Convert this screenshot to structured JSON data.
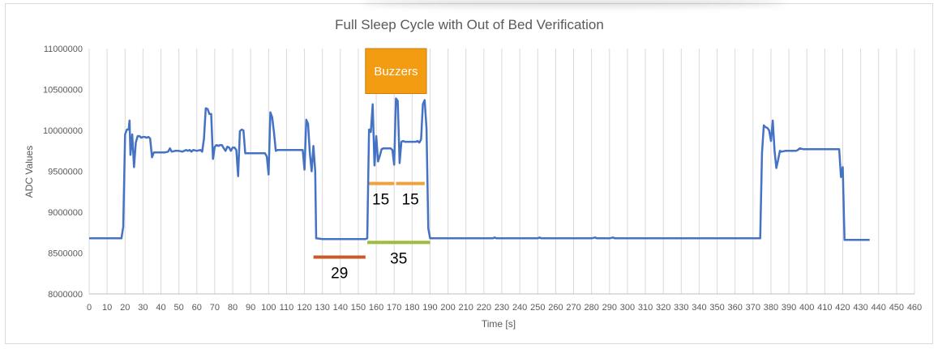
{
  "chart_data": {
    "type": "line",
    "title": "Full Sleep Cycle with Out of Bed Verification",
    "xlabel": "Time [s]",
    "ylabel": "ADC Values",
    "xlim": [
      0,
      460
    ],
    "ylim": [
      8000000,
      11000000
    ],
    "x_ticks": [
      0,
      10,
      20,
      30,
      40,
      50,
      60,
      70,
      80,
      90,
      100,
      110,
      120,
      130,
      140,
      150,
      160,
      170,
      180,
      190,
      200,
      210,
      220,
      230,
      240,
      250,
      260,
      270,
      280,
      290,
      300,
      310,
      320,
      330,
      340,
      350,
      360,
      370,
      380,
      390,
      400,
      410,
      420,
      430,
      440,
      450,
      460
    ],
    "y_ticks": [
      8000000,
      8500000,
      9000000,
      9500000,
      10000000,
      10500000,
      11000000
    ],
    "grid": "vertical",
    "legend": "none",
    "series_color": "#4472c4",
    "series": [
      {
        "points": [
          [
            0,
            8680000
          ],
          [
            18,
            8680000
          ],
          [
            19,
            8820000
          ],
          [
            20,
            9950000
          ],
          [
            21,
            10010000
          ],
          [
            22,
            10010000
          ],
          [
            22.5,
            10120000
          ],
          [
            23,
            9700000
          ],
          [
            24,
            9950000
          ],
          [
            25,
            9550000
          ],
          [
            26,
            9850000
          ],
          [
            27,
            9930000
          ],
          [
            28,
            9930000
          ],
          [
            29,
            9910000
          ],
          [
            30,
            9920000
          ],
          [
            31,
            9920000
          ],
          [
            32,
            9910000
          ],
          [
            33,
            9920000
          ],
          [
            34,
            9900000
          ],
          [
            35,
            9670000
          ],
          [
            36,
            9730000
          ],
          [
            37,
            9730000
          ],
          [
            38,
            9730000
          ],
          [
            40,
            9730000
          ],
          [
            42,
            9730000
          ],
          [
            44,
            9740000
          ],
          [
            45,
            9780000
          ],
          [
            46,
            9740000
          ],
          [
            48,
            9750000
          ],
          [
            50,
            9750000
          ],
          [
            52,
            9740000
          ],
          [
            54,
            9760000
          ],
          [
            55,
            9750000
          ],
          [
            56,
            9760000
          ],
          [
            57,
            9740000
          ],
          [
            58,
            9760000
          ],
          [
            60,
            9750000
          ],
          [
            62,
            9760000
          ],
          [
            63,
            9740000
          ],
          [
            64,
            9900000
          ],
          [
            65,
            10270000
          ],
          [
            66,
            10260000
          ],
          [
            67,
            10200000
          ],
          [
            68,
            10200000
          ],
          [
            69,
            9650000
          ],
          [
            70,
            9800000
          ],
          [
            71,
            9820000
          ],
          [
            72,
            9810000
          ],
          [
            73,
            9820000
          ],
          [
            74,
            9820000
          ],
          [
            75,
            9780000
          ],
          [
            76,
            9750000
          ],
          [
            77,
            9800000
          ],
          [
            78,
            9790000
          ],
          [
            79,
            9750000
          ],
          [
            80,
            9790000
          ],
          [
            81,
            9790000
          ],
          [
            82,
            9760000
          ],
          [
            83,
            9440000
          ],
          [
            84,
            9990000
          ],
          [
            85,
            10010000
          ],
          [
            86,
            10000000
          ],
          [
            87,
            9720000
          ],
          [
            88,
            9720000
          ],
          [
            90,
            9720000
          ],
          [
            92,
            9720000
          ],
          [
            94,
            9720000
          ],
          [
            96,
            9720000
          ],
          [
            98,
            9720000
          ],
          [
            99,
            9680000
          ],
          [
            100,
            9460000
          ],
          [
            101,
            10220000
          ],
          [
            102,
            10160000
          ],
          [
            103,
            9980000
          ],
          [
            104,
            9750000
          ],
          [
            105,
            9760000
          ],
          [
            110,
            9760000
          ],
          [
            115,
            9760000
          ],
          [
            118,
            9760000
          ],
          [
            119,
            9760000
          ],
          [
            120,
            9520000
          ],
          [
            121,
            10130000
          ],
          [
            122,
            10080000
          ],
          [
            123,
            9720000
          ],
          [
            124,
            9500000
          ],
          [
            125,
            9810000
          ],
          [
            126,
            9500000
          ],
          [
            126.5,
            8680000
          ],
          [
            130,
            8670000
          ],
          [
            140,
            8670000
          ],
          [
            150,
            8670000
          ],
          [
            154,
            8670000
          ],
          [
            155,
            8680000
          ],
          [
            156,
            10010000
          ],
          [
            157,
            9980000
          ],
          [
            158,
            10320000
          ],
          [
            159,
            9570000
          ],
          [
            160,
            9930000
          ],
          [
            161,
            9620000
          ],
          [
            162,
            9690000
          ],
          [
            163,
            9770000
          ],
          [
            164,
            9780000
          ],
          [
            166,
            9780000
          ],
          [
            168,
            9780000
          ],
          [
            169,
            9760000
          ],
          [
            170,
            9580000
          ],
          [
            171,
            10390000
          ],
          [
            172,
            10360000
          ],
          [
            173,
            9600000
          ],
          [
            174,
            9860000
          ],
          [
            175,
            9870000
          ],
          [
            176,
            9860000
          ],
          [
            178,
            9860000
          ],
          [
            180,
            9860000
          ],
          [
            182,
            9860000
          ],
          [
            183,
            9870000
          ],
          [
            184,
            9850000
          ],
          [
            185,
            9890000
          ],
          [
            186,
            10320000
          ],
          [
            187,
            10370000
          ],
          [
            188,
            10020000
          ],
          [
            189,
            8800000
          ],
          [
            190,
            8680000
          ],
          [
            200,
            8680000
          ],
          [
            220,
            8680000
          ],
          [
            225,
            8680000
          ],
          [
            226,
            8690000
          ],
          [
            227,
            8680000
          ],
          [
            230,
            8680000
          ],
          [
            250,
            8680000
          ],
          [
            251,
            8690000
          ],
          [
            252,
            8680000
          ],
          [
            280,
            8680000
          ],
          [
            282,
            8690000
          ],
          [
            283,
            8680000
          ],
          [
            290,
            8680000
          ],
          [
            292,
            8690000
          ],
          [
            293,
            8680000
          ],
          [
            310,
            8680000
          ],
          [
            340,
            8680000
          ],
          [
            370,
            8680000
          ],
          [
            374,
            8680000
          ],
          [
            375,
            9720000
          ],
          [
            376,
            10060000
          ],
          [
            377,
            10040000
          ],
          [
            378,
            10030000
          ],
          [
            379,
            10000000
          ],
          [
            380,
            9870000
          ],
          [
            381,
            10120000
          ],
          [
            382,
            9750000
          ],
          [
            383,
            9540000
          ],
          [
            384,
            9640000
          ],
          [
            385,
            9750000
          ],
          [
            386,
            9740000
          ],
          [
            388,
            9750000
          ],
          [
            390,
            9750000
          ],
          [
            392,
            9750000
          ],
          [
            394,
            9750000
          ],
          [
            395,
            9760000
          ],
          [
            396,
            9780000
          ],
          [
            398,
            9770000
          ],
          [
            400,
            9770000
          ],
          [
            405,
            9770000
          ],
          [
            410,
            9770000
          ],
          [
            415,
            9770000
          ],
          [
            418,
            9770000
          ],
          [
            419,
            9430000
          ],
          [
            420,
            9550000
          ],
          [
            421,
            8660000
          ],
          [
            425,
            8660000
          ],
          [
            430,
            8660000
          ],
          [
            435,
            8660000
          ]
        ]
      }
    ],
    "annotations": {
      "buzzer_box": {
        "label": "Buzzers",
        "color": "#f39c11",
        "x_range": [
          154,
          188
        ],
        "y_range": [
          10450000,
          11000000
        ]
      },
      "intervals": [
        {
          "label": "15",
          "color": "#f1a13a",
          "x_range": [
            155,
            170
          ],
          "y": 9350000
        },
        {
          "label": "15",
          "color": "#f1a13a",
          "x_range": [
            171,
            187
          ],
          "y": 9350000
        },
        {
          "label": "35",
          "color": "#9dbb3f",
          "x_range": [
            155,
            190
          ],
          "y": 8630000
        },
        {
          "label": "29",
          "color": "#c95a2a",
          "x_range": [
            125,
            154
          ],
          "y": 8450000
        }
      ]
    }
  }
}
